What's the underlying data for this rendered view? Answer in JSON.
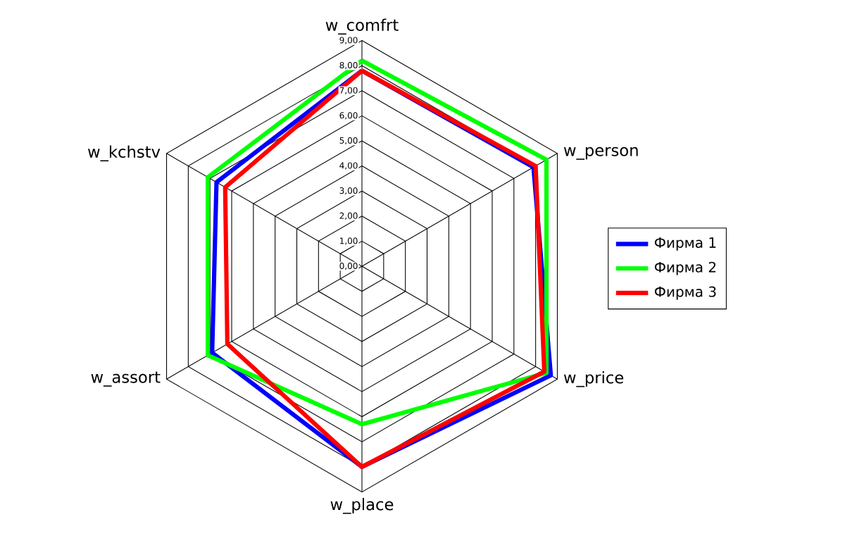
{
  "chart_data": {
    "type": "radar",
    "categories": [
      "w_comfrt",
      "w_person",
      "w_price",
      "w_place",
      "w_assort",
      "w_kchstv"
    ],
    "series": [
      {
        "name": "Фирма 1",
        "color": "#0000ff",
        "values": [
          7.8,
          7.9,
          8.7,
          8.0,
          6.9,
          6.7
        ]
      },
      {
        "name": "Фирма 2",
        "color": "#00ff00",
        "values": [
          8.2,
          8.5,
          8.5,
          6.3,
          7.1,
          7.1
        ]
      },
      {
        "name": "Фирма 3",
        "color": "#ff0000",
        "values": [
          7.8,
          8.0,
          8.4,
          8.0,
          6.2,
          6.3
        ]
      }
    ],
    "ylim": [
      0,
      9
    ],
    "yticks": [
      {
        "value": 0,
        "label": "0,00"
      },
      {
        "value": 1,
        "label": "1,00"
      },
      {
        "value": 2,
        "label": "2,00"
      },
      {
        "value": 3,
        "label": "3,00"
      },
      {
        "value": 4,
        "label": "4,00"
      },
      {
        "value": 5,
        "label": "5,00"
      },
      {
        "value": 6,
        "label": "6,00"
      },
      {
        "value": 7,
        "label": "7,00"
      },
      {
        "value": 8,
        "label": "8,00"
      },
      {
        "value": 9,
        "label": "9,00"
      }
    ],
    "grid": true,
    "legend": "right"
  }
}
